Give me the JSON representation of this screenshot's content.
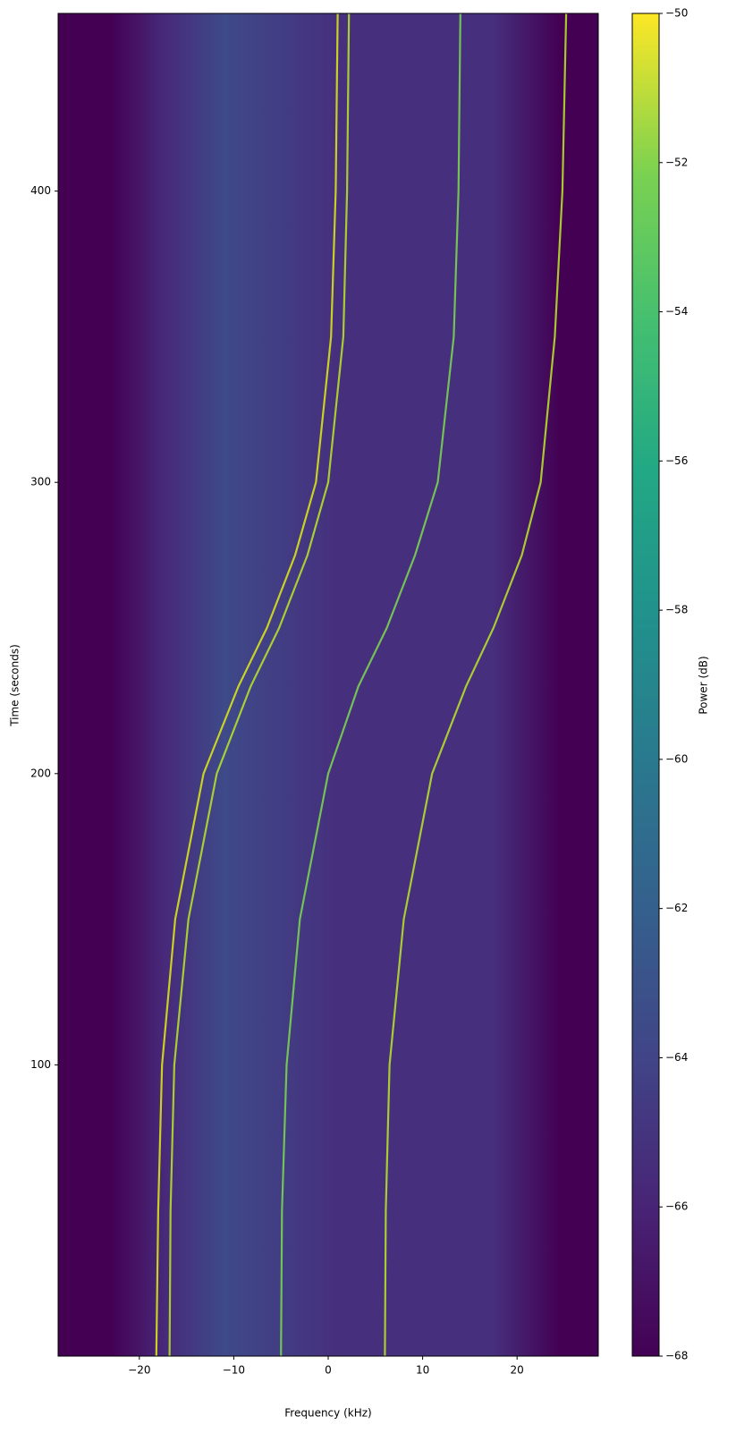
{
  "chart_data": {
    "type": "spectrogram",
    "xlabel": "Frequency (kHz)",
    "ylabel": "Time (seconds)",
    "xlim": [
      -28.6,
      28.6
    ],
    "ylim": [
      0,
      461
    ],
    "xticks": [
      {
        "value": -20,
        "label": "−20"
      },
      {
        "value": -10,
        "label": "−10"
      },
      0,
      10,
      20
    ],
    "yticks": [
      100,
      200,
      300,
      400
    ],
    "colorbar": {
      "label": "Power (dB)",
      "lim": [
        -68,
        -50
      ],
      "ticks": [
        {
          "value": -50,
          "label": "−50"
        },
        {
          "value": -52,
          "label": "−52"
        },
        {
          "value": -54,
          "label": "−54"
        },
        {
          "value": -56,
          "label": "−56"
        },
        {
          "value": -58,
          "label": "−58"
        },
        {
          "value": -60,
          "label": "−60"
        },
        {
          "value": -62,
          "label": "−62"
        },
        {
          "value": -64,
          "label": "−64"
        },
        {
          "value": -66,
          "label": "−66"
        },
        {
          "value": -68,
          "label": "−68"
        }
      ]
    },
    "traces": {
      "y": [
        0,
        50,
        100,
        150,
        200,
        230,
        250,
        275,
        300,
        350,
        400,
        461
      ],
      "series": [
        {
          "color": "#d8e219",
          "values": [
            -18.2,
            -18,
            -17.6,
            -16.2,
            -13.2,
            -9.5,
            -6.5,
            -3.5,
            -1.3,
            0.3,
            0.8,
            1
          ]
        },
        {
          "color": "#b5de2b",
          "values": [
            -16.8,
            -16.7,
            -16.3,
            -14.8,
            -11.8,
            -8.2,
            -5.2,
            -2.2,
            0,
            1.6,
            2,
            2.2
          ]
        },
        {
          "color": "#7ad151",
          "values": [
            -5,
            -4.9,
            -4.4,
            -3,
            0,
            3.2,
            6.2,
            9.2,
            11.6,
            13.3,
            13.8,
            14
          ]
        },
        {
          "color": "#b5de2b",
          "values": [
            6,
            6.1,
            6.5,
            8,
            11,
            14.6,
            17.5,
            20.5,
            22.5,
            24,
            24.8,
            25.2
          ]
        }
      ]
    }
  }
}
